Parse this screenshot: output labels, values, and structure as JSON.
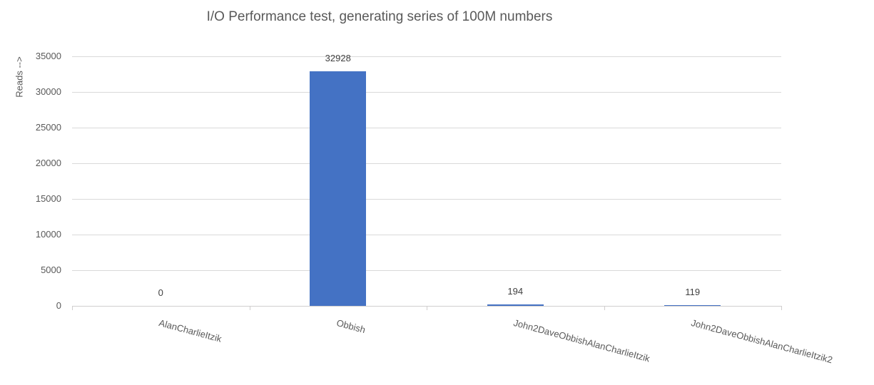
{
  "chart_data": {
    "type": "bar",
    "title": "I/O Performance test, generating series of 100M numbers",
    "categories": [
      "AlanCharlieItzik",
      "Obbish",
      "John2DaveObbishAlanCharlieItzik",
      "John2DaveObbishAlanCharlieItzik2"
    ],
    "values": [
      0,
      32928,
      194,
      119
    ],
    "data_labels": [
      "0",
      "32928",
      "194",
      "119"
    ],
    "xlabel": "",
    "ylabel": "Reads -->",
    "ylim": [
      0,
      35000
    ],
    "ytick_step": 5000,
    "ytick_labels": [
      "0",
      "5000",
      "10000",
      "15000",
      "20000",
      "25000",
      "30000",
      "35000"
    ],
    "grid": true,
    "legend": false,
    "bar_color": "#4472C4",
    "colors": {
      "title": "#595959",
      "axis_text": "#595959",
      "data_label": "#404040",
      "gridline": "#D9D9D9",
      "axis_line": "#D0CECE",
      "background": "#FFFFFF"
    }
  }
}
